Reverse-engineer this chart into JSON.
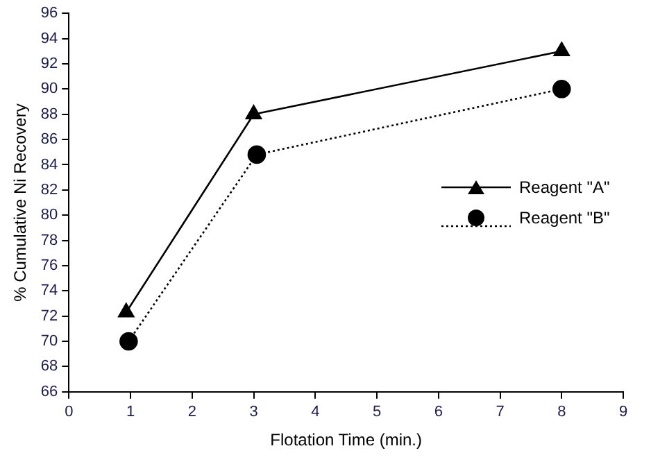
{
  "chart_data": {
    "type": "line",
    "xlabel": "Flotation Time (min.)",
    "ylabel": "% Cumulative Ni Recovery",
    "xlim": [
      0,
      9
    ],
    "xticks": [
      0,
      1,
      2,
      3,
      4,
      5,
      6,
      7,
      8,
      9
    ],
    "ylim": [
      66,
      96
    ],
    "yticks": [
      66,
      68,
      70,
      72,
      74,
      76,
      78,
      80,
      82,
      84,
      86,
      88,
      90,
      92,
      94,
      96
    ],
    "grid": false,
    "legend": "right",
    "series": [
      {
        "name": "Reagent \"A\"",
        "color": "#000000",
        "x": [
          0.93,
          3,
          8
        ],
        "values": [
          72.3,
          88,
          93
        ],
        "marker": "triangle",
        "line_style": "solid"
      },
      {
        "name": "Reagent \"B\"",
        "color": "#000000",
        "x": [
          0.97,
          3.05,
          8
        ],
        "values": [
          70,
          84.8,
          90
        ],
        "marker": "circle",
        "line_style": "dotted"
      }
    ]
  }
}
